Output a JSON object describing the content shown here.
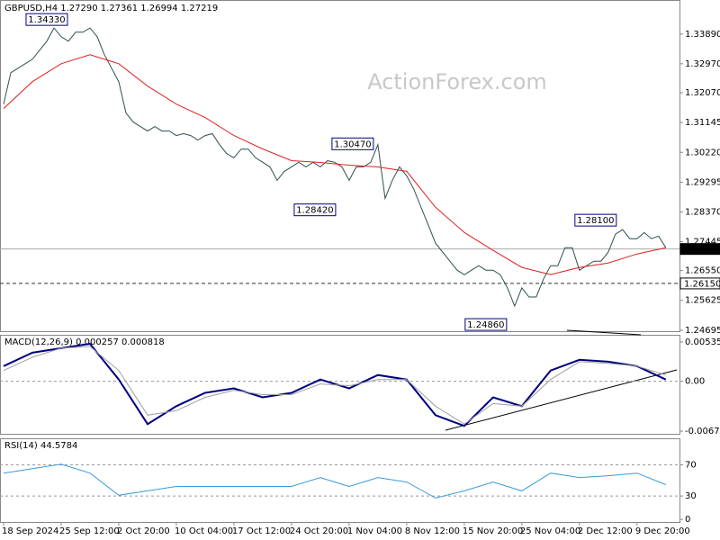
{
  "chart_data": [
    {
      "type": "line",
      "title": "GBPUSD,H4 1.27290 1.27361 1.26994 1.27219",
      "watermark": "ActionForex.com",
      "xlim": [
        -0.5,
        93.9
      ],
      "ylim": [
        1.24667,
        1.34921
      ],
      "yticks": [
        {
          "value": 1.3389,
          "label": "1.33890"
        },
        {
          "value": 1.3297,
          "label": "1.32970"
        },
        {
          "value": 1.3207,
          "label": "1.32070"
        },
        1.31145,
        {
          "value": 1.3022,
          "label": "1.30220"
        },
        1.29295,
        {
          "value": 1.2837,
          "label": "1.28370"
        },
        1.27445,
        {
          "value": 1.2655,
          "label": "1.26550"
        },
        1.25625,
        1.24695
      ],
      "series": [
        {
          "color": "#2f4f4f",
          "values": [
            1.3172,
            1.3269,
            1.3283,
            1.3297,
            1.3311,
            1.3339,
            1.3367,
            1.3408,
            1.3381,
            1.3367,
            1.3395,
            1.3395,
            1.3408,
            1.3381,
            1.3325,
            1.3283,
            1.3241,
            1.3144,
            1.3116,
            1.3102,
            1.3088,
            1.3102,
            1.3088,
            1.3088,
            1.3074,
            1.308,
            1.3074,
            1.306,
            1.3074,
            1.308,
            1.3046,
            1.3018,
            1.3005,
            1.3032,
            1.3032,
            1.3005,
            1.2991,
            1.2977,
            1.2935,
            1.2963,
            1.2977,
            1.2991,
            1.2977,
            1.2991,
            1.2977,
            1.2996,
            1.2991,
            1.2977,
            1.2935,
            1.2977,
            1.2977,
            1.2991,
            1.3046,
            1.2879,
            1.2935,
            1.2977,
            1.2949,
            1.2907,
            1.2851,
            1.2796,
            1.274,
            1.2712,
            1.2684,
            1.2656,
            1.2642,
            1.2656,
            1.267,
            1.2656,
            1.2656,
            1.2642,
            1.2601,
            1.2545,
            1.2601,
            1.2573,
            1.2573,
            1.2628,
            1.267,
            1.267,
            1.2726,
            1.2726,
            1.2656,
            1.267,
            1.2684,
            1.2684,
            1.2712,
            1.2768,
            1.2782,
            1.2754,
            1.2754,
            1.2773,
            1.2754,
            1.2762,
            1.2726
          ]
        },
        {
          "color": "#e02020",
          "x": [
            0,
            4,
            8,
            12,
            16,
            20,
            24,
            28,
            32,
            36,
            40,
            44,
            48,
            52,
            56,
            60,
            64,
            68,
            72,
            76,
            80,
            84,
            88,
            92
          ],
          "values": [
            1.31578,
            1.32414,
            1.32971,
            1.33249,
            1.32971,
            1.32274,
            1.31717,
            1.31299,
            1.30742,
            1.30324,
            1.29962,
            1.29906,
            1.29823,
            1.29767,
            1.29628,
            1.28513,
            1.27733,
            1.27176,
            1.26647,
            1.26424,
            1.26647,
            1.26786,
            1.27064,
            1.27259
          ]
        }
      ],
      "hlines": [
        {
          "value": 1.27219,
          "label": "1.27219",
          "style": "solid"
        },
        {
          "value": 1.2615,
          "label": "1.26150",
          "style": "dashed"
        }
      ],
      "annotations": [
        {
          "x": 6,
          "value": 1.3433,
          "label": "1.34330"
        },
        {
          "x": 48.5,
          "value": 1.3047,
          "label": "1.30470"
        },
        {
          "x": 43.25,
          "value": 1.2842,
          "label": "1.28420"
        },
        {
          "x": 82.25,
          "value": 1.281,
          "label": "1.28100"
        },
        {
          "x": 67,
          "value": 1.2486,
          "label": "1.24860"
        }
      ]
    },
    {
      "type": "line",
      "title": "MACD(12,26,9) 0.000257 0.000818",
      "xlim": [
        -0.5,
        93.9
      ],
      "ylim": [
        -0.00716,
        0.00621
      ],
      "yticks": [
        0.005359,
        {
          "value": 0,
          "label": "0.00"
        },
        -0.006798
      ],
      "guides": [
        0
      ],
      "series": [
        {
          "color": "#000080",
          "width": 2,
          "x": [
            0,
            4,
            8,
            12,
            16,
            20,
            24,
            28,
            32,
            36,
            40,
            44,
            48,
            52,
            56,
            60,
            64,
            68,
            72,
            76,
            80,
            84,
            88,
            92
          ],
          "values": [
            0.00207,
            0.00389,
            0.0045,
            0.00511,
            0.00024,
            -0.00584,
            -0.0034,
            -0.00158,
            -0.00097,
            -0.00219,
            -0.00158,
            0.00024,
            -0.00097,
            0.00085,
            0.00024,
            -0.00462,
            -0.00608,
            -0.00219,
            -0.0034,
            0.00146,
            0.00292,
            0.00267,
            0.00207,
            0.00024
          ]
        },
        {
          "color": "#a0a0a0",
          "width": 1,
          "x": [
            0,
            4,
            8,
            12,
            16,
            20,
            24,
            28,
            32,
            36,
            40,
            44,
            48,
            52,
            56,
            60,
            64,
            68,
            72,
            76,
            80,
            84,
            88,
            92
          ],
          "values": [
            0.00146,
            0.00328,
            0.0045,
            0.00474,
            0.00146,
            -0.00462,
            -0.00401,
            -0.00219,
            -0.00122,
            -0.00182,
            -0.00182,
            -0.00036,
            -0.00061,
            0.00024,
            0.00024,
            -0.0034,
            -0.00584,
            -0.00304,
            -0.0034,
            0.00024,
            0.00267,
            0.00243,
            0.00207,
            0.00085
          ]
        }
      ]
    },
    {
      "type": "line",
      "title": "RSI(14) 44.5784",
      "xlim": [
        -0.5,
        93.9
      ],
      "ylim": [
        -3.4,
        103
      ],
      "yticks": [
        70,
        30,
        0
      ],
      "guides": [
        70,
        30
      ],
      "xticks": [
        {
          "value": 0,
          "label": "18 Sep 2024"
        },
        {
          "value": 8,
          "label": "25 Sep 12:00"
        },
        {
          "value": 16,
          "label": "2 Oct 20:00"
        },
        {
          "value": 24,
          "label": "10 Oct 04:00"
        },
        {
          "value": 32,
          "label": "17 Oct 12:00"
        },
        {
          "value": 40,
          "label": "24 Oct 20:00"
        },
        {
          "value": 48,
          "label": "1 Nov 04:00"
        },
        {
          "value": 56,
          "label": "8 Nov 12:00"
        },
        {
          "value": 64,
          "label": "15 Nov 20:00"
        },
        {
          "value": 72,
          "label": "25 Nov 04:00"
        },
        {
          "value": 80,
          "label": "2 Dec 12:00"
        },
        {
          "value": 88,
          "label": "9 Dec 20:00"
        }
      ],
      "series": [
        {
          "color": "#3a9ad9",
          "width": 1,
          "x": [
            0,
            4,
            8,
            12,
            16,
            20,
            24,
            28,
            32,
            36,
            40,
            44,
            48,
            52,
            56,
            60,
            64,
            68,
            72,
            76,
            80,
            84,
            88,
            92
          ],
          "values": [
            59.4,
            65.1,
            70.9,
            59.4,
            30.9,
            36.6,
            42.3,
            42.3,
            42.3,
            42.3,
            42.3,
            53.7,
            42.3,
            53.7,
            48,
            27.4,
            36.6,
            48,
            36.6,
            59.4,
            53.7,
            56,
            59.4,
            44.6
          ]
        }
      ]
    }
  ]
}
